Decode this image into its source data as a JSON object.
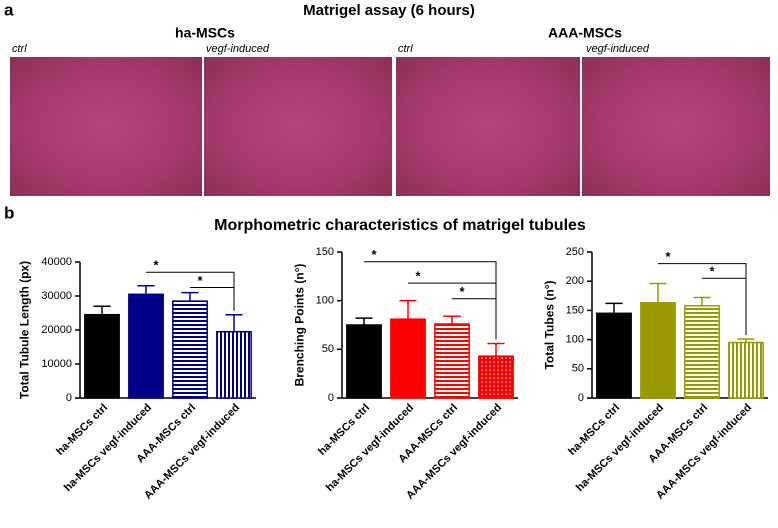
{
  "panel_a": {
    "letter": "a",
    "title": "Matrigel assay (6 hours)",
    "groups": [
      {
        "name": "ha-MSCs",
        "images": [
          "ctrl",
          "vegf-induced"
        ]
      },
      {
        "name": "AAA-MSCs",
        "images": [
          "ctrl",
          "vegf-induced"
        ]
      }
    ]
  },
  "panel_b": {
    "letter": "b",
    "title": "Morphometric characteristics of matrigel tubules"
  },
  "chart_data": [
    {
      "type": "bar",
      "y_label": "Total Tubule Length (px)",
      "categories": [
        "ha-MSCs ctrl",
        "ha-MSCs vegf-induced",
        "AAA-MSCs ctrl",
        "AAA-MSCs vegf-induced"
      ],
      "values": [
        24500,
        30500,
        28500,
        19500
      ],
      "errors": [
        2500,
        2500,
        2500,
        5000
      ],
      "colors": [
        "#000000",
        "#00008b",
        "#00008b",
        "#00008b"
      ],
      "patterns": [
        "solid",
        "solid",
        "horizontal",
        "vertical"
      ],
      "ylim": [
        0,
        40000
      ],
      "yticks": [
        0,
        10000,
        20000,
        30000,
        40000
      ],
      "annotations": [
        "*",
        "*"
      ]
    },
    {
      "type": "bar",
      "y_label": "Brenching Points (n°)",
      "categories": [
        "ha-MSCs ctrl",
        "ha-MSCs vegf-induced",
        "AAA-MSCs ctrl",
        "AAA-MSCs vegf-induced"
      ],
      "values": [
        75,
        81,
        76,
        43
      ],
      "errors": [
        7,
        19,
        8,
        13
      ],
      "colors": [
        "#000000",
        "#ff0000",
        "#ff0000",
        "#ff0000"
      ],
      "patterns": [
        "solid",
        "solid",
        "horizontal",
        "dots"
      ],
      "ylim": [
        0,
        150
      ],
      "yticks": [
        0,
        50,
        100,
        150
      ],
      "annotations": [
        "*",
        "*",
        "*"
      ]
    },
    {
      "type": "bar",
      "y_label": "Total Tubes (n°)",
      "categories": [
        "ha-MSCs ctrl",
        "ha-MSCs vegf-induced",
        "AAA-MSCs ctrl",
        "AAA-MSCs vegf-induced"
      ],
      "values": [
        145,
        163,
        158,
        95
      ],
      "errors": [
        17,
        33,
        14,
        6
      ],
      "colors": [
        "#000000",
        "#999900",
        "#999900",
        "#999900"
      ],
      "patterns": [
        "solid",
        "solid",
        "horizontal",
        "vertical"
      ],
      "ylim": [
        0,
        250
      ],
      "yticks": [
        0,
        50,
        100,
        150,
        200,
        250
      ],
      "annotations": [
        "*",
        "*"
      ]
    }
  ]
}
